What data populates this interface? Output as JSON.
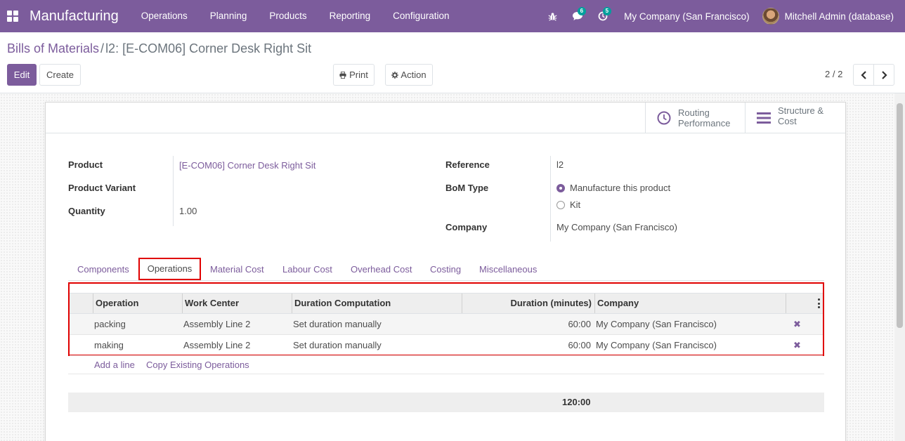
{
  "navbar": {
    "app_title": "Manufacturing",
    "menu": [
      "Operations",
      "Planning",
      "Products",
      "Reporting",
      "Configuration"
    ],
    "messages_badge": "6",
    "activities_badge": "5",
    "company": "My Company (San Francisco)",
    "user": "Mitchell Admin (database)"
  },
  "breadcrumb": {
    "parent": "Bills of Materials",
    "separator": "/",
    "current": "l2: [E-COM06] Corner Desk Right Sit"
  },
  "buttons": {
    "edit": "Edit",
    "create": "Create",
    "print": "Print",
    "action": "Action"
  },
  "pager": {
    "value": "2 / 2"
  },
  "smart_buttons": [
    {
      "label_line1": "Routing",
      "label_line2": "Performance",
      "icon": "clock-icon"
    },
    {
      "label_line1": "Structure &",
      "label_line2": "Cost",
      "icon": "bars-icon"
    }
  ],
  "form": {
    "product_label": "Product",
    "product_value": "[E-COM06] Corner Desk Right Sit",
    "variant_label": "Product Variant",
    "variant_value": "",
    "quantity_label": "Quantity",
    "quantity_value": "1.00",
    "reference_label": "Reference",
    "reference_value": "l2",
    "bom_type_label": "BoM Type",
    "bom_type_options": [
      {
        "label": "Manufacture this product",
        "checked": true
      },
      {
        "label": "Kit",
        "checked": false
      }
    ],
    "company_label": "Company",
    "company_value": "My Company (San Francisco)"
  },
  "tabs": [
    "Components",
    "Operations",
    "Material Cost",
    "Labour Cost",
    "Overhead Cost",
    "Costing",
    "Miscellaneous"
  ],
  "active_tab": "Operations",
  "operations_table": {
    "columns": [
      "Operation",
      "Work Center",
      "Duration Computation",
      "Duration (minutes)",
      "Company"
    ],
    "rows": [
      {
        "operation": "packing",
        "work_center": "Assembly Line 2",
        "computation": "Set duration manually",
        "duration": "60:00",
        "company": "My Company (San Francisco)"
      },
      {
        "operation": "making",
        "work_center": "Assembly Line 2",
        "computation": "Set duration manually",
        "duration": "60:00",
        "company": "My Company (San Francisco)"
      }
    ],
    "add_line": "Add a line",
    "copy_existing": "Copy Existing Operations",
    "total_duration": "120:00"
  },
  "colors": {
    "brand": "#7c5c9c",
    "highlight": "#e00000",
    "badge": "#00a09d"
  }
}
